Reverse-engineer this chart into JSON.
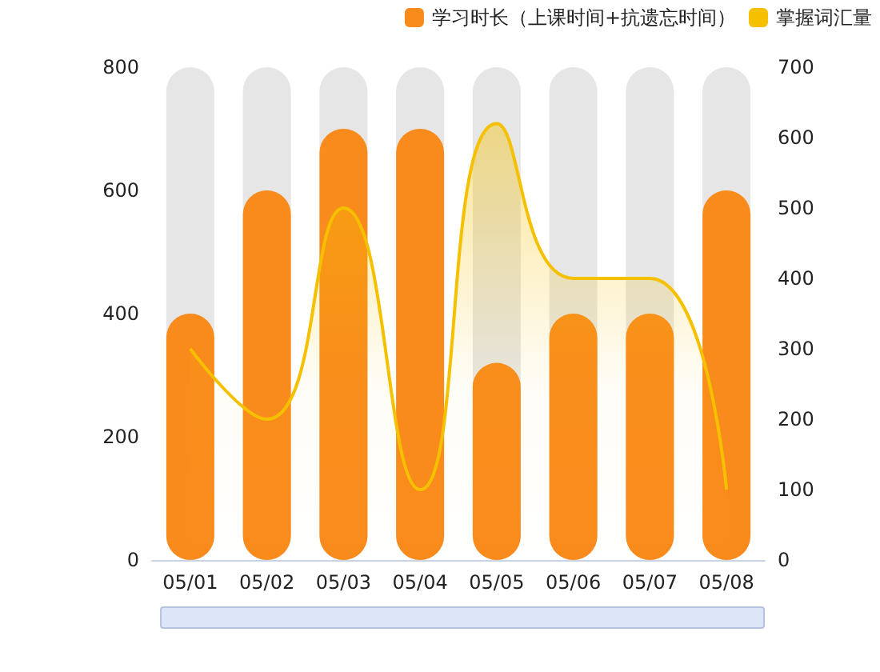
{
  "chart_data": {
    "type": "bar",
    "categories": [
      "05/01",
      "05/02",
      "05/03",
      "05/04",
      "05/05",
      "05/06",
      "05/07",
      "05/08"
    ],
    "series": [
      {
        "name": "学习时长（上课时间+抗遗忘时间）",
        "color": "#f98b1c",
        "values": [
          400,
          600,
          700,
          700,
          320,
          400,
          400,
          600
        ]
      },
      {
        "name": "掌握词汇量",
        "type": "area",
        "axis": "y2",
        "color": "#f5c000",
        "values": [
          300,
          200,
          500,
          100,
          620,
          400,
          400,
          100
        ]
      }
    ],
    "ylim": [
      0,
      800
    ],
    "yticks": [
      0,
      200,
      400,
      600,
      800
    ],
    "y2lim": [
      0,
      700
    ],
    "y2ticks": [
      0,
      100,
      200,
      300,
      400,
      500,
      600,
      700
    ],
    "grid": false,
    "legend": "top right",
    "marker": "none"
  }
}
